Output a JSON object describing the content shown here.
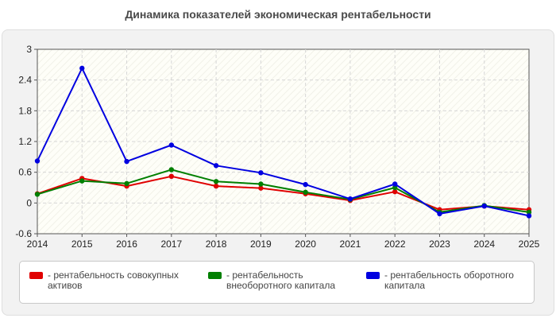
{
  "chart_data": {
    "type": "line",
    "title": "Динамика показателей экономическая рентабельности",
    "x": [
      "2014",
      "2015",
      "2016",
      "2017",
      "2018",
      "2019",
      "2020",
      "2021",
      "2022",
      "2023",
      "2024",
      "2025"
    ],
    "yticks": [
      "3",
      "2.4",
      "1.8",
      "1.2",
      "0.6",
      "0",
      "-0.6"
    ],
    "ylim": [
      -0.6,
      3
    ],
    "grid": true,
    "legend_position": "bottom",
    "series": [
      {
        "name": "- рентабельность совокупных активов",
        "color": "#e00000",
        "values": [
          0.18,
          0.48,
          0.33,
          0.52,
          0.33,
          0.29,
          0.18,
          0.05,
          0.22,
          -0.13,
          -0.06,
          -0.13
        ]
      },
      {
        "name": "- рентабельность внеоборотного капитала",
        "color": "#007f00",
        "values": [
          0.17,
          0.43,
          0.38,
          0.65,
          0.42,
          0.37,
          0.21,
          0.07,
          0.3,
          -0.18,
          -0.05,
          -0.18
        ]
      },
      {
        "name": "- рентабельность оборотного капитала",
        "color": "#0000e0",
        "values": [
          0.82,
          2.63,
          0.81,
          1.13,
          0.73,
          0.59,
          0.36,
          0.08,
          0.37,
          -0.21,
          -0.06,
          -0.25
        ]
      }
    ]
  }
}
